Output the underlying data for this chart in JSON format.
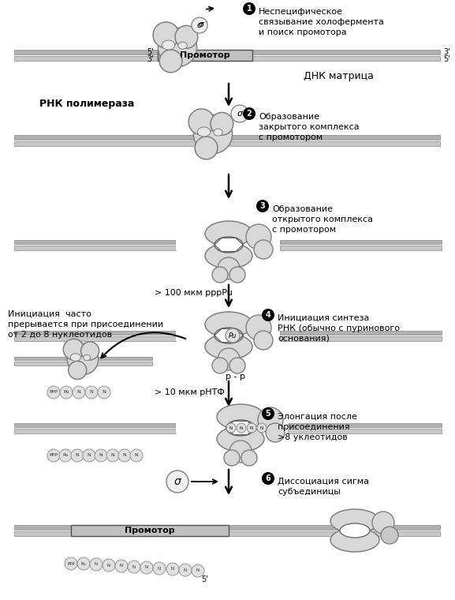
{
  "bg_color": "#ffffff",
  "poly_fill": "#d8d8d8",
  "poly_edge": "#808080",
  "poly_inner_fill": "#e8e8e8",
  "dna_top_fill": "#b0b0b0",
  "dna_bot_fill": "#c8c8c8",
  "dna_edge": "#888888",
  "prom_fill": "#c0c0c0",
  "prom_edge": "#606060",
  "nuc_fill": "#e0e0e0",
  "nuc_edge": "#888888",
  "sigma_fill": "#f0f0f0",
  "open_white": "#ffffff",
  "step1_text": "Неспецифическое\nсвязывание холофермента\nи поиск промотора",
  "step2_text": "Образование\nзакрытого комплекса\nс промотором",
  "step3_text": "Образование\nоткрытого комплекса\nс промотором",
  "step4_text": "Инициация синтеза\nРНК (обычно с пуринового\nоснования)",
  "step5_text": "Элонгация после\nприсоединения\n>8 уклеотидов",
  "step6_text": "Диссоциация сигма\nсубъединицы",
  "promotor_text": "Промотор",
  "dna_matrix_text": "ДНК матрица",
  "rna_pol_text": "РНК полимераза",
  "ppp_pu_label": "> 100 мкм pppPu",
  "rntf_label": "> 10 мкм рНТФ",
  "pp_label": "р - р",
  "initiation_text": "Инициация  часто\nпрерывается при присоединении\nот 2 до 8 нуклеотидов",
  "sigma_sym": "σ",
  "five_prime": "5'",
  "three_prime": "3'"
}
